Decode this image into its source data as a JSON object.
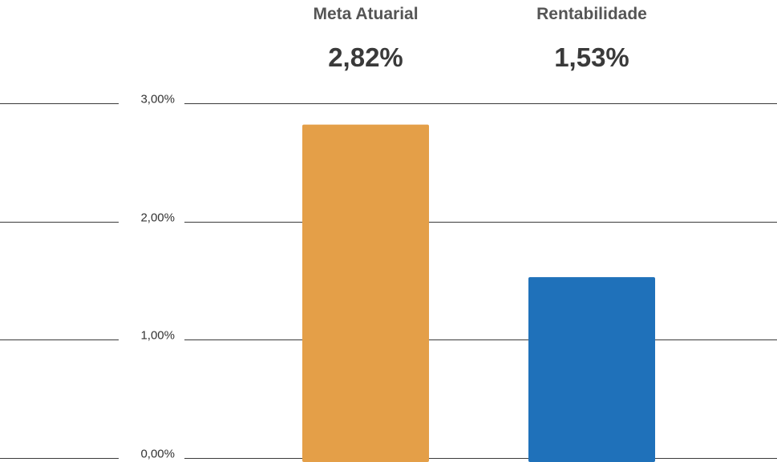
{
  "chart_data": {
    "type": "bar",
    "categories": [
      "Meta Atuarial",
      "Rentabilidade"
    ],
    "values": [
      2.82,
      1.53
    ],
    "value_labels": [
      "2,82%",
      "1,53%"
    ],
    "colors": [
      "#E49F48",
      "#1F71BA"
    ],
    "ylim": [
      0,
      3
    ],
    "yticks": [
      0,
      1,
      2,
      3
    ],
    "ytick_labels": [
      "0,00%",
      "1,00%",
      "2,00%",
      "3,00%"
    ],
    "grid": true,
    "title": "",
    "xlabel": "",
    "ylabel": ""
  }
}
